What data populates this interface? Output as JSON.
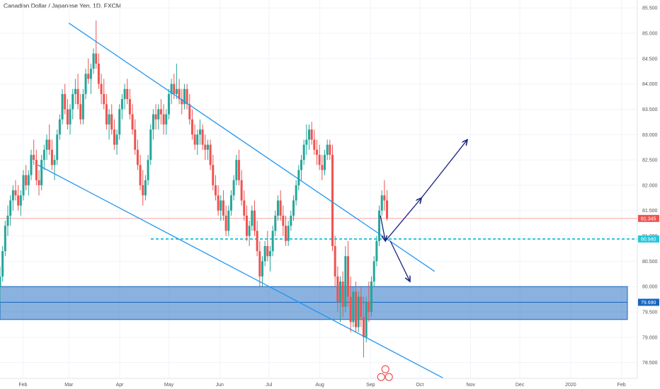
{
  "chart_data": {
    "type": "candlestick",
    "title": "Canadian Dollar / Japanese Yen, 1D, FXCM",
    "y_ticks": [
      "85.500",
      "85.000",
      "84.500",
      "84.000",
      "83.500",
      "83.000",
      "82.500",
      "82.000",
      "81.500",
      "81.000",
      "80.500",
      "80.000",
      "79.500",
      "79.000",
      "78.500"
    ],
    "x_ticks": [
      "Feb",
      "Mar",
      "Apr",
      "May",
      "Jun",
      "Jul",
      "Aug",
      "Sep",
      "Oct",
      "Nov",
      "Dec",
      "2020",
      "Feb"
    ],
    "ylim": [
      78.3,
      85.6
    ],
    "grid": true,
    "colors": {
      "up": "#26a69a",
      "down": "#ef5350",
      "trend": "#2196f3",
      "zone": "#1565c0",
      "arrow": "#1a237e",
      "price_line": "#ef5350"
    },
    "price_labels": [
      {
        "value": 81.345,
        "label": "81.345",
        "color": "#ef5350"
      },
      {
        "value": 80.94,
        "label": "80.940",
        "color": "#26c6da"
      },
      {
        "value": 79.69,
        "label": "79.690",
        "color": "#1565c0"
      }
    ],
    "annotations": {
      "channel_upper": [
        [
          "2019-03-01",
          85.2
        ],
        [
          "2019-10-10",
          80.3
        ]
      ],
      "channel_lower": [
        [
          "2019-02-10",
          82.4
        ],
        [
          "2019-10-15",
          78.2
        ]
      ],
      "support_zone": [
        79.35,
        80.0
      ],
      "dashed_level": 80.94,
      "projection_arrows": [
        [
          [
            "2019-09-07",
            81.4
          ],
          [
            "2019-09-10",
            80.9
          ]
        ],
        [
          [
            "2019-09-10",
            80.9
          ],
          [
            "2019-10-02",
            81.75
          ]
        ],
        [
          [
            "2019-10-02",
            81.75
          ],
          [
            "2019-10-30",
            82.9
          ]
        ],
        [
          [
            "2019-09-13",
            80.9
          ],
          [
            "2019-09-25",
            80.1
          ]
        ]
      ]
    },
    "series": [
      {
        "name": "CADJPY",
        "ohlc": [
          [
            80.0,
            80.4,
            79.7,
            80.2
          ],
          [
            80.2,
            80.8,
            80.1,
            80.7
          ],
          [
            80.7,
            81.3,
            80.6,
            81.2
          ],
          [
            81.2,
            81.6,
            81.0,
            81.4
          ],
          [
            81.4,
            81.8,
            81.2,
            81.7
          ],
          [
            81.7,
            82.0,
            81.5,
            81.9
          ],
          [
            81.9,
            82.1,
            81.7,
            81.8
          ],
          [
            81.8,
            82.0,
            81.5,
            81.6
          ],
          [
            81.6,
            81.9,
            81.4,
            81.8
          ],
          [
            81.8,
            82.3,
            81.7,
            82.2
          ],
          [
            82.2,
            82.4,
            81.9,
            82.0
          ],
          [
            82.0,
            82.3,
            81.8,
            82.2
          ],
          [
            82.2,
            82.7,
            82.1,
            82.6
          ],
          [
            82.6,
            82.9,
            82.4,
            82.5
          ],
          [
            82.5,
            82.7,
            82.0,
            82.1
          ],
          [
            82.1,
            82.3,
            81.8,
            82.0
          ],
          [
            82.0,
            82.6,
            81.9,
            82.5
          ],
          [
            82.5,
            82.8,
            82.3,
            82.7
          ],
          [
            82.7,
            83.0,
            82.5,
            82.9
          ],
          [
            82.9,
            83.2,
            82.6,
            82.7
          ],
          [
            82.7,
            82.9,
            82.3,
            82.4
          ],
          [
            82.4,
            82.6,
            82.1,
            82.5
          ],
          [
            82.5,
            83.1,
            82.4,
            83.0
          ],
          [
            83.0,
            83.4,
            82.9,
            83.3
          ],
          [
            83.3,
            83.9,
            83.2,
            83.8
          ],
          [
            83.8,
            84.0,
            83.4,
            83.5
          ],
          [
            83.5,
            83.7,
            83.1,
            83.2
          ],
          [
            83.2,
            83.6,
            83.0,
            83.5
          ],
          [
            83.5,
            83.9,
            83.3,
            83.8
          ],
          [
            83.8,
            84.1,
            83.6,
            83.9
          ],
          [
            83.9,
            84.2,
            83.5,
            83.6
          ],
          [
            83.6,
            83.8,
            83.2,
            83.3
          ],
          [
            83.3,
            83.9,
            83.2,
            83.8
          ],
          [
            83.8,
            84.3,
            83.7,
            84.2
          ],
          [
            84.2,
            84.5,
            84.0,
            84.1
          ],
          [
            84.1,
            84.4,
            83.8,
            84.3
          ],
          [
            84.3,
            84.7,
            84.2,
            84.6
          ],
          [
            84.6,
            85.25,
            84.3,
            84.4
          ],
          [
            84.4,
            84.6,
            83.9,
            84.0
          ],
          [
            84.0,
            84.2,
            83.6,
            83.8
          ],
          [
            83.8,
            84.1,
            83.5,
            83.6
          ],
          [
            83.6,
            83.8,
            83.1,
            83.2
          ],
          [
            83.2,
            83.5,
            82.9,
            83.4
          ],
          [
            83.4,
            83.6,
            83.0,
            83.1
          ],
          [
            83.1,
            83.3,
            82.7,
            82.8
          ],
          [
            82.8,
            83.1,
            82.6,
            83.0
          ],
          [
            83.0,
            83.6,
            82.9,
            83.5
          ],
          [
            83.5,
            83.8,
            83.3,
            83.7
          ],
          [
            83.7,
            84.0,
            83.5,
            83.9
          ],
          [
            83.9,
            84.1,
            83.6,
            83.7
          ],
          [
            83.7,
            83.9,
            83.3,
            83.4
          ],
          [
            83.4,
            83.6,
            83.0,
            83.1
          ],
          [
            83.1,
            83.3,
            82.6,
            82.7
          ],
          [
            82.7,
            82.9,
            82.3,
            82.4
          ],
          [
            82.4,
            82.6,
            81.9,
            82.0
          ],
          [
            82.0,
            82.3,
            81.6,
            81.8
          ],
          [
            81.8,
            82.2,
            81.7,
            82.1
          ],
          [
            82.1,
            82.6,
            82.0,
            82.5
          ],
          [
            82.5,
            83.2,
            82.4,
            83.1
          ],
          [
            83.1,
            83.5,
            82.9,
            83.4
          ],
          [
            83.4,
            83.6,
            83.1,
            83.3
          ],
          [
            83.3,
            83.6,
            83.1,
            83.5
          ],
          [
            83.5,
            83.7,
            83.2,
            83.4
          ],
          [
            83.4,
            83.6,
            83.0,
            83.2
          ],
          [
            83.2,
            83.5,
            83.0,
            83.4
          ],
          [
            83.4,
            83.9,
            83.3,
            83.8
          ],
          [
            83.8,
            84.1,
            83.6,
            84.0
          ],
          [
            84.0,
            84.2,
            83.7,
            83.8
          ],
          [
            83.8,
            84.4,
            83.7,
            83.9
          ],
          [
            83.9,
            84.1,
            83.6,
            83.7
          ],
          [
            83.7,
            83.9,
            83.4,
            83.6
          ],
          [
            83.6,
            84.0,
            83.5,
            83.9
          ],
          [
            83.9,
            84.0,
            83.5,
            83.6
          ],
          [
            83.6,
            83.8,
            83.2,
            83.3
          ],
          [
            83.3,
            83.5,
            82.9,
            83.0
          ],
          [
            83.0,
            83.2,
            82.7,
            82.8
          ],
          [
            82.8,
            83.1,
            82.6,
            83.0
          ],
          [
            83.0,
            83.3,
            82.8,
            83.1
          ],
          [
            83.1,
            83.2,
            82.7,
            82.8
          ],
          [
            82.8,
            83.0,
            82.5,
            82.7
          ],
          [
            82.7,
            82.9,
            82.5,
            82.8
          ],
          [
            82.8,
            82.9,
            82.3,
            82.4
          ],
          [
            82.4,
            82.6,
            81.9,
            82.0
          ],
          [
            82.0,
            82.2,
            81.7,
            81.8
          ],
          [
            81.8,
            82.0,
            81.4,
            81.5
          ],
          [
            81.5,
            81.8,
            81.3,
            81.7
          ],
          [
            81.7,
            81.9,
            81.3,
            81.4
          ],
          [
            81.4,
            81.6,
            81.0,
            81.1
          ],
          [
            81.1,
            81.6,
            81.0,
            81.5
          ],
          [
            81.5,
            81.9,
            81.4,
            81.8
          ],
          [
            81.8,
            82.2,
            81.7,
            82.1
          ],
          [
            82.1,
            82.6,
            82.0,
            82.5
          ],
          [
            82.5,
            82.7,
            82.0,
            82.1
          ],
          [
            82.1,
            82.3,
            81.6,
            81.7
          ],
          [
            81.7,
            81.9,
            81.3,
            81.4
          ],
          [
            81.4,
            81.6,
            80.9,
            81.0
          ],
          [
            81.0,
            81.3,
            80.8,
            81.2
          ],
          [
            81.2,
            81.6,
            81.1,
            81.5
          ],
          [
            81.5,
            81.7,
            81.0,
            81.1
          ],
          [
            81.1,
            81.3,
            80.6,
            80.7
          ],
          [
            80.7,
            80.9,
            80.0,
            80.2
          ],
          [
            80.2,
            80.6,
            80.0,
            80.5
          ],
          [
            80.5,
            80.9,
            80.4,
            80.8
          ],
          [
            80.8,
            81.1,
            80.5,
            80.6
          ],
          [
            80.6,
            80.8,
            80.3,
            80.7
          ],
          [
            80.7,
            81.2,
            80.6,
            81.1
          ],
          [
            81.1,
            81.5,
            81.0,
            81.4
          ],
          [
            81.4,
            81.8,
            81.3,
            81.7
          ],
          [
            81.7,
            81.9,
            81.3,
            81.4
          ],
          [
            81.4,
            81.6,
            81.0,
            81.2
          ],
          [
            81.2,
            81.4,
            80.8,
            80.9
          ],
          [
            80.9,
            81.3,
            80.8,
            81.2
          ],
          [
            81.2,
            81.5,
            81.1,
            81.4
          ],
          [
            81.4,
            81.8,
            81.3,
            81.7
          ],
          [
            81.7,
            82.1,
            81.6,
            82.0
          ],
          [
            82.0,
            82.4,
            81.9,
            82.3
          ],
          [
            82.3,
            82.6,
            82.1,
            82.5
          ],
          [
            82.5,
            82.9,
            82.4,
            82.8
          ],
          [
            82.8,
            83.2,
            82.6,
            82.9
          ],
          [
            82.9,
            83.2,
            82.7,
            83.1
          ],
          [
            83.1,
            83.25,
            82.8,
            82.9
          ],
          [
            82.9,
            83.1,
            82.6,
            82.7
          ],
          [
            82.7,
            82.9,
            82.4,
            82.6
          ],
          [
            82.6,
            82.8,
            82.3,
            82.4
          ],
          [
            82.4,
            82.6,
            82.1,
            82.3
          ],
          [
            82.3,
            82.7,
            82.2,
            82.6
          ],
          [
            82.6,
            82.9,
            82.5,
            82.8
          ],
          [
            82.8,
            82.9,
            82.5,
            82.6
          ],
          [
            82.6,
            82.8,
            80.7,
            80.8
          ],
          [
            80.8,
            81.0,
            80.0,
            80.2
          ],
          [
            80.2,
            80.4,
            79.5,
            79.7
          ],
          [
            79.7,
            80.2,
            79.3,
            80.1
          ],
          [
            80.1,
            80.3,
            79.4,
            79.6
          ],
          [
            79.6,
            80.8,
            79.5,
            80.6
          ],
          [
            80.6,
            80.9,
            79.6,
            79.8
          ],
          [
            79.8,
            80.2,
            79.1,
            79.3
          ],
          [
            79.3,
            80.0,
            79.2,
            79.9
          ],
          [
            79.9,
            80.1,
            79.1,
            79.2
          ],
          [
            79.2,
            79.9,
            79.1,
            79.8
          ],
          [
            79.8,
            80.0,
            79.2,
            79.4
          ],
          [
            79.4,
            79.8,
            78.6,
            79.0
          ],
          [
            79.0,
            79.8,
            78.9,
            79.7
          ],
          [
            79.7,
            80.1,
            79.3,
            79.5
          ],
          [
            79.5,
            80.2,
            79.4,
            80.1
          ],
          [
            80.1,
            80.6,
            80.0,
            80.5
          ],
          [
            80.5,
            81.0,
            80.4,
            80.9
          ],
          [
            80.9,
            81.6,
            80.8,
            81.5
          ],
          [
            81.5,
            81.9,
            81.4,
            81.8
          ],
          [
            81.8,
            82.1,
            81.5,
            81.7
          ],
          [
            81.7,
            81.9,
            81.3,
            81.345
          ]
        ]
      }
    ]
  }
}
